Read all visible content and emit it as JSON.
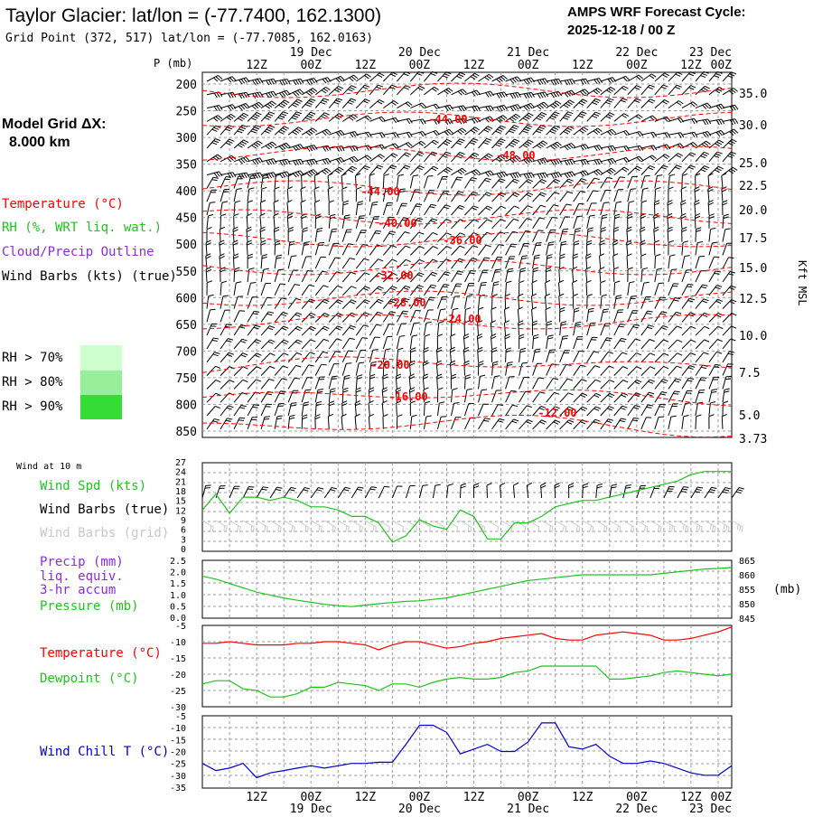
{
  "header": {
    "title": "Taylor Glacier:  lat/lon = (-77.7400, 162.1300)",
    "grid_point": "Grid Point (372, 517) lat/lon = (-77.7085, 162.0163)",
    "cycle_label": "AMPS WRF Forecast Cycle:",
    "cycle_value": "2025-12-18 / 00  Z"
  },
  "model_grid": {
    "label": "Model Grid ΔX:",
    "value": "8.000 km"
  },
  "time_axis": {
    "date_labels": [
      "19 Dec",
      "20 Dec",
      "21 Dec",
      "22 Dec",
      "23 Dec"
    ],
    "hour_labels": [
      "12Z",
      "00Z",
      "12Z",
      "00Z",
      "12Z",
      "00Z",
      "12Z",
      "00Z",
      "12Z",
      "00Z"
    ]
  },
  "legend": {
    "temperature": "Temperature (°C)",
    "rh": "RH (%, WRT liq. wat.)",
    "cloud": "Cloud/Precip Outline",
    "wind_barbs": "Wind Barbs (kts) (true)",
    "rh_boxes": [
      "RH > 70%",
      "RH > 80%",
      "RH > 90%"
    ]
  },
  "colors": {
    "temperature": "#ff0000",
    "rh": "#1ec41e",
    "cloud": "#8a2be2",
    "wind_chill": "#0000cc",
    "grid": "#9a9a9a",
    "rh70": "#ccffcc",
    "rh80": "#99ee99",
    "rh90": "#33dd33"
  },
  "chart_data": [
    {
      "type": "contour",
      "name": "upper-air",
      "ylabel": "P (mb)",
      "y_right_label": "Kft MSL",
      "pressure_levels": [
        200,
        250,
        300,
        350,
        400,
        450,
        500,
        550,
        600,
        650,
        700,
        750,
        800,
        850
      ],
      "kft_ticks": [
        "35.0",
        "30.0",
        "25.0",
        "22.5",
        "20.0",
        "17.5",
        "15.0",
        "12.5",
        "10.0",
        "7.5",
        "5.0",
        "3.73"
      ],
      "temperature_contour_labels": [
        "-44.00",
        "-48.00",
        "-44.00",
        "-40.00",
        "-36.00",
        "-32.00",
        "-28.00",
        "-24.00",
        "-20.00",
        "-16.00",
        "-12.00"
      ]
    },
    {
      "type": "line",
      "name": "surface-wind",
      "title": "Wind at 10 m",
      "series_labels": [
        "Wind Spd (kts)",
        "Wind Barbs (true)",
        "Wind Barbs (grid)"
      ],
      "yticks": [
        "27",
        "24",
        "21",
        "18",
        "15",
        "12",
        "9",
        "6",
        "3",
        "0"
      ],
      "ylim": [
        0,
        27
      ],
      "x_hours": [
        0,
        3,
        6,
        9,
        12,
        15,
        18,
        21,
        24,
        27,
        30,
        33,
        36,
        39,
        42,
        45,
        48,
        51,
        54,
        57,
        60,
        63,
        66,
        69,
        72,
        75,
        78,
        81,
        84,
        87,
        90,
        93,
        96,
        99,
        102,
        105,
        108,
        111,
        114,
        117
      ],
      "wind_speed": [
        12,
        17,
        11,
        16,
        16,
        15,
        16,
        15,
        13,
        13,
        12,
        10,
        10,
        8,
        2,
        4,
        9,
        7,
        6,
        12,
        10,
        3,
        3,
        8,
        8,
        10,
        13,
        14,
        15,
        15,
        16,
        17,
        18,
        19,
        20,
        21,
        23,
        24,
        24,
        24
      ]
    },
    {
      "type": "line",
      "name": "precip-pressure",
      "series_labels": [
        "Precip (mm)",
        "liq. equiv.",
        "3-hr accum",
        "Pressure (mb)"
      ],
      "yticks_left": [
        "2.5",
        "2.0",
        "1.5",
        "1.0",
        "0.5",
        "0.0"
      ],
      "yticks_right": [
        "865",
        "860",
        "855",
        "850",
        "845"
      ],
      "right_unit": "(mb)",
      "ylim_precip": [
        0,
        2.5
      ],
      "ylim_pressure": [
        845,
        865
      ],
      "pressure": [
        859.5,
        858.5,
        857,
        855.5,
        854,
        853,
        852,
        851.2,
        850.5,
        849.8,
        849.3,
        849,
        849.5,
        850,
        850.4,
        850.8,
        851,
        851.5,
        852,
        853,
        854,
        855,
        856,
        857,
        858,
        858.5,
        859,
        859.5,
        860,
        860,
        860,
        860,
        860,
        860,
        860.5,
        861,
        861.5,
        862,
        862.2,
        862.5
      ]
    },
    {
      "type": "line",
      "name": "temperature-dewpoint",
      "series_labels": [
        "Temperature (°C)",
        "Dewpoint (°C)"
      ],
      "yticks": [
        "-5",
        "-10",
        "-15",
        "-20",
        "-25",
        "-30"
      ],
      "ylim": [
        -30,
        -5
      ],
      "temperature": [
        -10.5,
        -10.5,
        -10,
        -10.5,
        -11,
        -11,
        -11,
        -10.5,
        -10.5,
        -10,
        -10,
        -10.5,
        -11,
        -12.5,
        -11,
        -10,
        -10,
        -11,
        -12,
        -11.5,
        -10.5,
        -10,
        -9,
        -8.5,
        -8,
        -7.5,
        -9,
        -9.5,
        -9.5,
        -8,
        -7.5,
        -7,
        -7.5,
        -8,
        -9.5,
        -9.5,
        -9,
        -8,
        -7,
        -5.5
      ],
      "dewpoint": [
        -23,
        -22,
        -22,
        -24.5,
        -25,
        -27,
        -27,
        -26,
        -24,
        -24,
        -22.5,
        -23,
        -23.5,
        -25,
        -23,
        -23,
        -24,
        -22.5,
        -21.5,
        -21,
        -21.5,
        -21.5,
        -21,
        -19.5,
        -19,
        -17.5,
        -17.5,
        -17.5,
        -17.5,
        -17.5,
        -21.5,
        -21.5,
        -21,
        -20.5,
        -19.5,
        -19,
        -19.5,
        -20,
        -20.5,
        -20
      ]
    },
    {
      "type": "line",
      "name": "wind-chill",
      "series_labels": [
        "Wind Chill T (°C)"
      ],
      "yticks": [
        "-5",
        "-10",
        "-15",
        "-20",
        "-25",
        "-30",
        "-35"
      ],
      "ylim": [
        -35,
        -5
      ],
      "wind_chill": [
        -25,
        -28,
        -27,
        -25,
        -31,
        -29,
        -28,
        -27,
        -26,
        -27,
        -26,
        -25,
        -25,
        -24.5,
        -24.5,
        -17,
        -9,
        -9,
        -12,
        -21,
        -19,
        -17,
        -20,
        -20,
        -16,
        -8,
        -8,
        -18,
        -19,
        -17,
        -22,
        -25,
        -25,
        -24,
        -25,
        -27,
        -29,
        -30,
        -30,
        -26
      ]
    }
  ]
}
